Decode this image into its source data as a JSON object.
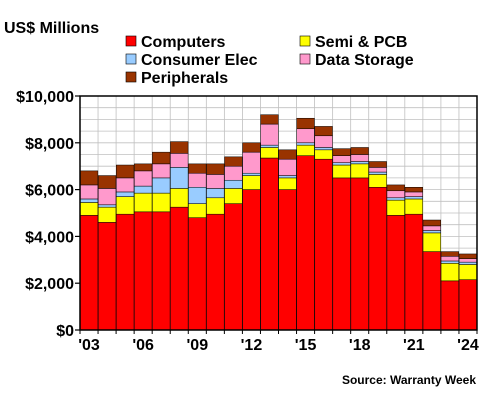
{
  "chart_data": {
    "type": "bar",
    "stacked": true,
    "title": "US$ Millions",
    "source": "Source: Warranty Week",
    "ylim": [
      0,
      10000
    ],
    "y_ticks": [
      0,
      2000,
      4000,
      6000,
      8000,
      10000
    ],
    "y_tick_labels": [
      "$0",
      "$2,000",
      "$4,000",
      "$6,000",
      "$8,000",
      "$10,000"
    ],
    "categories": [
      "2003",
      "2004",
      "2005",
      "2006",
      "2007",
      "2008",
      "2009",
      "2010",
      "2011",
      "2012",
      "2013",
      "2014",
      "2015",
      "2016",
      "2017",
      "2018",
      "2019",
      "2020",
      "2021",
      "2022",
      "2023",
      "2024"
    ],
    "x_tick_labels": [
      {
        "index": 0,
        "label": "'03"
      },
      {
        "index": 3,
        "label": "'06"
      },
      {
        "index": 6,
        "label": "'09"
      },
      {
        "index": 9,
        "label": "'12"
      },
      {
        "index": 12,
        "label": "'15"
      },
      {
        "index": 15,
        "label": "'18"
      },
      {
        "index": 18,
        "label": "'21"
      },
      {
        "index": 21,
        "label": "'24"
      }
    ],
    "grid": true,
    "legend_position": "top",
    "series": [
      {
        "name": "Computers",
        "color": "#ff0000",
        "values": [
          4900,
          4600,
          4950,
          5050,
          5050,
          5250,
          4800,
          4950,
          5400,
          6000,
          7350,
          6000,
          7450,
          7300,
          6500,
          6500,
          6100,
          4900,
          4950,
          3350,
          2100,
          2150
        ]
      },
      {
        "name": "Semi & PCB",
        "color": "#ffff00",
        "values": [
          550,
          650,
          750,
          800,
          800,
          800,
          600,
          700,
          650,
          600,
          450,
          500,
          450,
          400,
          550,
          600,
          550,
          650,
          650,
          800,
          750,
          650
        ]
      },
      {
        "name": "Consumer Elec",
        "color": "#99ccff",
        "values": [
          150,
          100,
          200,
          300,
          650,
          900,
          700,
          400,
          350,
          100,
          100,
          100,
          100,
          100,
          100,
          100,
          100,
          100,
          100,
          100,
          100,
          100
        ]
      },
      {
        "name": "Data Storage",
        "color": "#ff99cc",
        "values": [
          600,
          700,
          600,
          650,
          600,
          600,
          600,
          600,
          600,
          900,
          900,
          700,
          600,
          500,
          300,
          300,
          200,
          300,
          200,
          200,
          200,
          150
        ]
      },
      {
        "name": "Peripherals",
        "color": "#993300",
        "values": [
          600,
          550,
          550,
          300,
          500,
          500,
          400,
          450,
          400,
          400,
          400,
          400,
          450,
          400,
          300,
          300,
          250,
          250,
          200,
          250,
          200,
          200
        ]
      }
    ]
  },
  "colors": {
    "plot_border": "#000000",
    "grid": "#c0c0c0",
    "bar_stroke": "#000000"
  }
}
